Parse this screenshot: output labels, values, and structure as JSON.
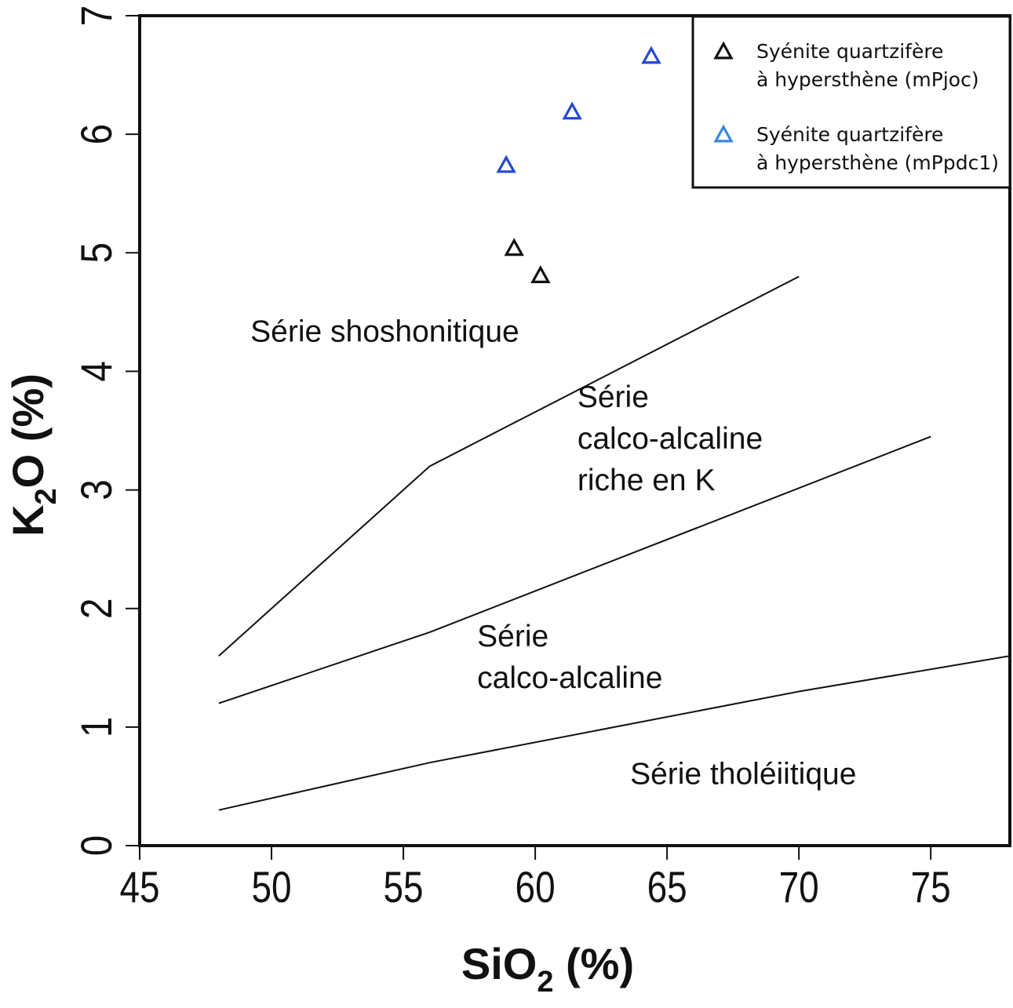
{
  "chart_data": {
    "type": "scatter",
    "title": "",
    "xlabel": {
      "main": "SiO",
      "sub": "2",
      "suffix": " (%)"
    },
    "ylabel": {
      "main": "K",
      "sub": "2",
      "suffix": "O (%)"
    },
    "xlim": [
      45,
      78
    ],
    "ylim": [
      0,
      7
    ],
    "x_ticks": [
      45,
      50,
      55,
      60,
      65,
      70,
      75
    ],
    "y_ticks": [
      0,
      1,
      2,
      3,
      4,
      5,
      6,
      7
    ],
    "grid": false,
    "legend_position": "top-right",
    "series": [
      {
        "name": "Syénite quartzifère à hypersthène (mPjoc)",
        "legend_lines": [
          "Syénite quartzifère",
          "à hypersthène (mPjoc)"
        ],
        "marker": "triangle-open",
        "color": "#111111",
        "legend_color": "#111111",
        "points": [
          {
            "x": 59.2,
            "y": 5.03
          },
          {
            "x": 60.2,
            "y": 4.8
          }
        ]
      },
      {
        "name": "Syénite quartzifère à hypersthène (mPpdc1)",
        "legend_lines": [
          "Syénite quartzifère",
          "à hypersthène (mPpdc1)"
        ],
        "marker": "triangle-open",
        "color": "#2548d0",
        "legend_color": "#3a86e0",
        "points": [
          {
            "x": 58.9,
            "y": 5.73
          },
          {
            "x": 61.4,
            "y": 6.18
          },
          {
            "x": 64.4,
            "y": 6.65
          }
        ]
      }
    ],
    "boundaries": [
      {
        "name": "shoshonitic-highK",
        "points": [
          [
            48,
            1.6
          ],
          [
            56,
            3.2
          ],
          [
            70,
            4.8
          ]
        ]
      },
      {
        "name": "highK-calcalkaline",
        "points": [
          [
            48,
            1.2
          ],
          [
            56,
            1.8
          ],
          [
            75,
            3.45
          ]
        ]
      },
      {
        "name": "calcalkaline-tholeiitic",
        "points": [
          [
            48,
            0.3
          ],
          [
            52,
            0.5
          ],
          [
            56,
            0.7
          ],
          [
            63,
            1.0
          ],
          [
            70,
            1.3
          ],
          [
            78,
            1.6
          ]
        ]
      }
    ],
    "region_labels": [
      {
        "name": "shoshonitic",
        "lines": [
          "Série shoshonitique"
        ],
        "x": 49.2,
        "y": 4.25
      },
      {
        "name": "high-k-calcalkaline",
        "lines": [
          "Série",
          "calco-alcaline",
          "riche en K"
        ],
        "x": 61.6,
        "y": 3.7
      },
      {
        "name": "calcalkaline",
        "lines": [
          "Série",
          "calco-alcaline"
        ],
        "x": 57.8,
        "y": 1.68
      },
      {
        "name": "tholeiitic",
        "lines": [
          "Série tholéiitique"
        ],
        "x": 63.6,
        "y": 0.52
      }
    ]
  }
}
